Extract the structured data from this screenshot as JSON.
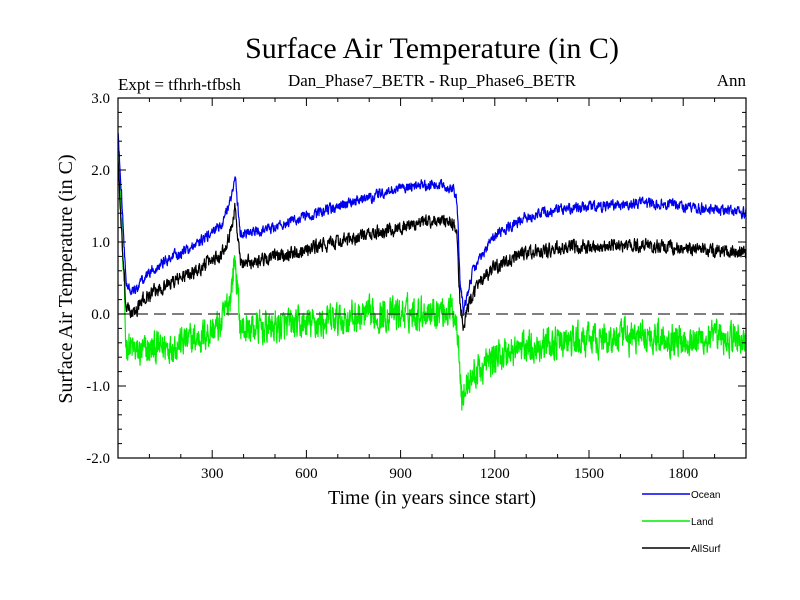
{
  "chart_data": {
    "type": "line",
    "title": "Surface Air Temperature (in C)",
    "subtitle": "Dan_Phase7_BETR - Rup_Phase6_BETR",
    "left_note": "Expt = tfhrh-tfbsh",
    "right_note": "Ann",
    "xlabel": "Time (in years since start)",
    "ylabel": "Surface Air Temperature (in C)",
    "xlim": [
      0,
      2000
    ],
    "ylim": [
      -2.0,
      3.0
    ],
    "xticks": [
      300,
      600,
      900,
      1200,
      1500,
      1800
    ],
    "xtick_labels": [
      "300",
      "600",
      "900",
      "1200",
      "1500",
      "1800"
    ],
    "yticks": [
      -2.0,
      -1.0,
      0.0,
      1.0,
      2.0,
      3.0
    ],
    "ytick_labels": [
      "-2.0",
      "-1.0",
      "0.0",
      "1.0",
      "2.0",
      "3.0"
    ],
    "reference_line": 0.0,
    "legend_position": "bottom-right",
    "series": [
      {
        "name": "Ocean",
        "color": "#0000ee",
        "noise": 0.07,
        "anchors": [
          [
            0,
            2.5
          ],
          [
            10,
            1.8
          ],
          [
            25,
            0.45
          ],
          [
            50,
            0.3
          ],
          [
            80,
            0.5
          ],
          [
            150,
            0.75
          ],
          [
            250,
            0.95
          ],
          [
            330,
            1.25
          ],
          [
            360,
            1.6
          ],
          [
            372,
            1.95
          ],
          [
            390,
            1.1
          ],
          [
            450,
            1.15
          ],
          [
            600,
            1.35
          ],
          [
            750,
            1.55
          ],
          [
            900,
            1.75
          ],
          [
            1000,
            1.8
          ],
          [
            1070,
            1.75
          ],
          [
            1080,
            1.55
          ],
          [
            1090,
            0.4
          ],
          [
            1100,
            0.05
          ],
          [
            1130,
            0.6
          ],
          [
            1200,
            1.1
          ],
          [
            1300,
            1.35
          ],
          [
            1400,
            1.45
          ],
          [
            1550,
            1.5
          ],
          [
            1700,
            1.55
          ],
          [
            1800,
            1.5
          ],
          [
            2000,
            1.4
          ]
        ]
      },
      {
        "name": "Land",
        "color": "#00ee00",
        "noise": 0.22,
        "anchors": [
          [
            0,
            2.6
          ],
          [
            8,
            1.6
          ],
          [
            25,
            -0.4
          ],
          [
            60,
            -0.55
          ],
          [
            150,
            -0.45
          ],
          [
            250,
            -0.35
          ],
          [
            330,
            -0.15
          ],
          [
            360,
            0.3
          ],
          [
            372,
            0.8
          ],
          [
            390,
            -0.2
          ],
          [
            450,
            -0.2
          ],
          [
            600,
            -0.15
          ],
          [
            750,
            -0.05
          ],
          [
            900,
            0.0
          ],
          [
            1000,
            0.05
          ],
          [
            1070,
            0.05
          ],
          [
            1085,
            -0.3
          ],
          [
            1095,
            -1.2
          ],
          [
            1120,
            -0.9
          ],
          [
            1200,
            -0.6
          ],
          [
            1300,
            -0.45
          ],
          [
            1400,
            -0.4
          ],
          [
            1550,
            -0.35
          ],
          [
            1700,
            -0.3
          ],
          [
            1800,
            -0.35
          ],
          [
            2000,
            -0.35
          ]
        ]
      },
      {
        "name": "AllSurf",
        "color": "#000000",
        "noise": 0.09,
        "anchors": [
          [
            0,
            2.2
          ],
          [
            10,
            1.2
          ],
          [
            25,
            0.1
          ],
          [
            50,
            0.0
          ],
          [
            80,
            0.2
          ],
          [
            150,
            0.4
          ],
          [
            250,
            0.6
          ],
          [
            330,
            0.85
          ],
          [
            360,
            1.15
          ],
          [
            372,
            1.5
          ],
          [
            390,
            0.7
          ],
          [
            450,
            0.75
          ],
          [
            600,
            0.9
          ],
          [
            750,
            1.05
          ],
          [
            900,
            1.2
          ],
          [
            1000,
            1.3
          ],
          [
            1070,
            1.25
          ],
          [
            1080,
            1.05
          ],
          [
            1090,
            0.1
          ],
          [
            1100,
            -0.15
          ],
          [
            1130,
            0.3
          ],
          [
            1200,
            0.65
          ],
          [
            1300,
            0.85
          ],
          [
            1400,
            0.9
          ],
          [
            1550,
            0.95
          ],
          [
            1700,
            0.95
          ],
          [
            1800,
            0.9
          ],
          [
            2000,
            0.85
          ]
        ]
      }
    ]
  }
}
